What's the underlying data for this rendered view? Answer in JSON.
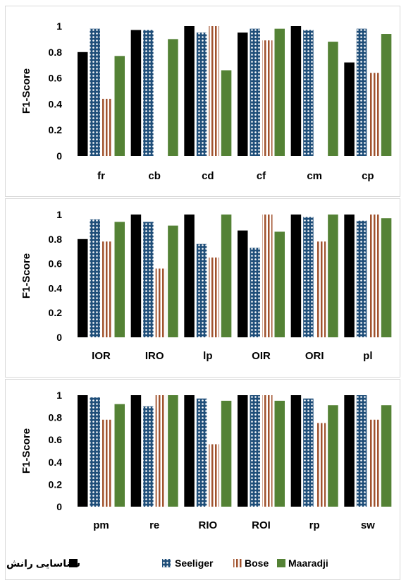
{
  "chart_data": [
    {
      "type": "bar",
      "ylabel": "F1-Score",
      "ylim": [
        0,
        1
      ],
      "yticks": [
        "0",
        "0.2",
        "0.4",
        "0.6",
        "0.8",
        "1"
      ],
      "categories": [
        "fr",
        "cb",
        "cd",
        "cf",
        "cm",
        "cp"
      ],
      "series": [
        {
          "name": "شناسایی رانش",
          "values": [
            0.8,
            0.97,
            1.0,
            0.95,
            1.0,
            0.72
          ]
        },
        {
          "name": "Seeliger",
          "values": [
            0.98,
            0.97,
            0.95,
            0.98,
            0.97,
            0.98
          ]
        },
        {
          "name": "Bose",
          "values": [
            0.44,
            0,
            1.0,
            0.89,
            0,
            0.64
          ]
        },
        {
          "name": "Maaradji",
          "values": [
            0.77,
            0.9,
            0.66,
            0.98,
            0.88,
            0.94
          ]
        }
      ]
    },
    {
      "type": "bar",
      "ylabel": "F1-Score",
      "ylim": [
        0,
        1
      ],
      "yticks": [
        "0",
        "0.2",
        "0.4",
        "0.6",
        "0.8",
        "1"
      ],
      "categories": [
        "IOR",
        "IRO",
        "lp",
        "OIR",
        "ORI",
        "pl"
      ],
      "series": [
        {
          "name": "شناسایی رانش",
          "values": [
            0.8,
            1.0,
            1.0,
            0.87,
            1.0,
            1.0
          ]
        },
        {
          "name": "Seeliger",
          "values": [
            0.96,
            0.94,
            0.76,
            0.73,
            0.98,
            0.95
          ]
        },
        {
          "name": "Bose",
          "values": [
            0.78,
            0.56,
            0.65,
            1.0,
            0.78,
            1.0
          ]
        },
        {
          "name": "Maaradji",
          "values": [
            0.94,
            0.91,
            1.0,
            0.86,
            1.0,
            0.97
          ]
        }
      ]
    },
    {
      "type": "bar",
      "ylabel": "F1-Score",
      "ylim": [
        0,
        1
      ],
      "yticks": [
        "0",
        "0.2",
        "0.4",
        "0.6",
        "0.8",
        "1"
      ],
      "categories": [
        "pm",
        "re",
        "RIO",
        "ROI",
        "rp",
        "sw"
      ],
      "series": [
        {
          "name": "شناسایی رانش",
          "values": [
            1.0,
            1.0,
            1.0,
            1.0,
            1.0,
            1.0
          ]
        },
        {
          "name": "Seeliger",
          "values": [
            0.98,
            0.9,
            0.97,
            1.0,
            0.97,
            1.0
          ]
        },
        {
          "name": "Bose",
          "values": [
            0.78,
            1.0,
            0.56,
            1.0,
            0.75,
            0.78
          ]
        },
        {
          "name": "Maaradji",
          "values": [
            0.92,
            1.0,
            0.95,
            0.95,
            0.91,
            0.91
          ]
        }
      ]
    }
  ],
  "legend": {
    "items": [
      {
        "label": "شناسایی رانش",
        "swatch": "solid-black"
      },
      {
        "label": "Seeliger",
        "swatch": "blue-dots"
      },
      {
        "label": "Bose",
        "swatch": "brown-vertical-stripes"
      },
      {
        "label": "Maaradji",
        "swatch": "solid-green"
      }
    ]
  },
  "colors": {
    "black": "#000000",
    "seeliger": "#1f4e79",
    "bose": "#a0522d",
    "maaradji": "#548235"
  }
}
